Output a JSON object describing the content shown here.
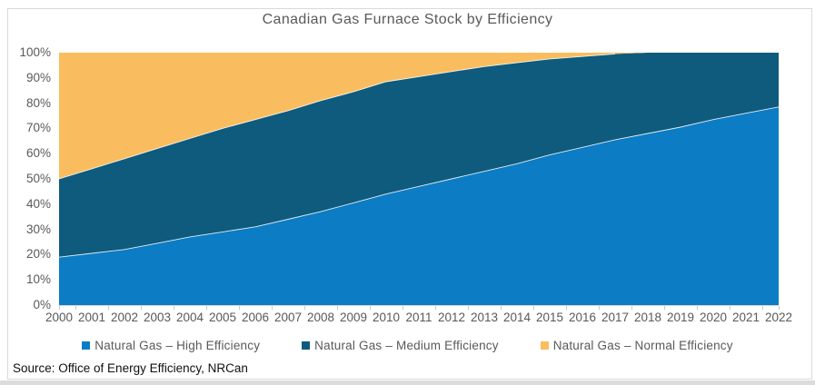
{
  "chart": {
    "title": "Canadian Gas Furnace Stock by Efficiency",
    "source": "Source: Office of Energy Efficiency, NRCan"
  },
  "colors": {
    "high_efficiency": "#0c7cc4",
    "medium_efficiency": "#0e5b7e",
    "normal_efficiency": "#f9bd5f",
    "axis_text": "#595959",
    "axis_line": "#d9d9d9",
    "frame_border": "#d9d9d9",
    "source_text": "#111111"
  },
  "chart_data": {
    "type": "area",
    "stacked": true,
    "title": "Canadian Gas Furnace Stock by Efficiency",
    "x": [
      2000,
      2001,
      2002,
      2003,
      2004,
      2005,
      2006,
      2007,
      2008,
      2009,
      2010,
      2011,
      2012,
      2013,
      2014,
      2015,
      2016,
      2017,
      2018,
      2019,
      2020,
      2021,
      2022
    ],
    "series": [
      {
        "name": "Natural Gas – High Efficiency",
        "color": "#0c7cc4",
        "values": [
          19,
          20.5,
          22,
          24.5,
          27,
          29,
          31,
          34,
          37,
          40.5,
          44,
          47,
          50,
          53,
          56,
          59.5,
          62.5,
          65.5,
          68,
          70.5,
          73.5,
          76,
          78.5
        ]
      },
      {
        "name": "Natural Gas – Medium Efficiency",
        "color": "#0e5b7e",
        "values": [
          31,
          33.5,
          36,
          37.5,
          39,
          41,
          42.5,
          43,
          44,
          44,
          44.5,
          43.5,
          42.5,
          41.5,
          40,
          38,
          36,
          34,
          32,
          29.5,
          26.5,
          24,
          21.5
        ]
      },
      {
        "name": "Natural Gas – Normal Efficiency",
        "color": "#f9bd5f",
        "values": [
          50,
          46,
          42,
          38,
          34,
          30,
          26.5,
          23,
          19,
          15.5,
          11.5,
          9.5,
          7.5,
          5.5,
          4,
          2.5,
          1.5,
          0.5,
          0,
          0,
          0,
          0,
          0
        ]
      }
    ],
    "ylabel": "",
    "xlabel": "",
    "ylim": [
      0,
      100
    ],
    "y_tick_labels": [
      "0%",
      "10%",
      "20%",
      "30%",
      "40%",
      "50%",
      "60%",
      "70%",
      "80%",
      "90%",
      "100%"
    ],
    "grid": false,
    "legend_position": "bottom"
  }
}
